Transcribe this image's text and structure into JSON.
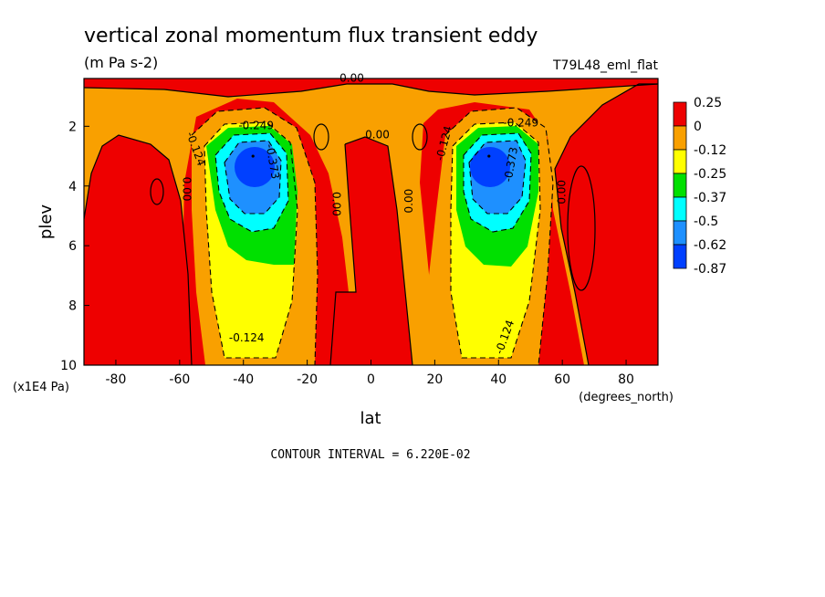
{
  "chart_data": {
    "type": "heatmap",
    "title": "vertical zonal momentum flux transient eddy",
    "units": "(m Pa s-2)",
    "dataset": "T79L48_eml_flat",
    "xlabel": "lat",
    "x_units": "(degrees_north)",
    "ylabel": "plev",
    "y_units": "(x1E4 Pa)",
    "xlim": [
      -90,
      90
    ],
    "ylim": [
      10,
      0.4
    ],
    "x_ticks": [
      "-80",
      "-60",
      "-40",
      "-20",
      "0",
      "20",
      "40",
      "60",
      "80"
    ],
    "y_ticks": [
      "2",
      "4",
      "6",
      "8",
      "10"
    ],
    "colorbar_labels": [
      "0.25",
      "0",
      "-0.12",
      "-0.25",
      "-0.37",
      "-0.5",
      "-0.62",
      "-0.87"
    ],
    "colorbar_colors": [
      "#ee0000",
      "#f9a000",
      "#ffff00",
      "#00e000",
      "#00ffff",
      "#1e90ff",
      "#0040ff"
    ],
    "contour_interval": "CONTOUR INTERVAL = 6.220E-02",
    "contour_labels": [
      {
        "text": "0.00",
        "lat": -6,
        "plev": 0.5,
        "rot": 0
      },
      {
        "text": "-0.249",
        "lat": -36,
        "plev": 2.1,
        "rot": 0
      },
      {
        "text": "-0.373",
        "lat": -32,
        "plev": 3.2,
        "rot": 80
      },
      {
        "text": "-0.124",
        "lat": -56,
        "plev": 2.8,
        "rot": 70
      },
      {
        "text": "0.00",
        "lat": -59,
        "plev": 4.1,
        "rot": 90
      },
      {
        "text": "0.00",
        "lat": 2,
        "plev": 2.4,
        "rot": 0
      },
      {
        "text": "0.00",
        "lat": -12,
        "plev": 4.6,
        "rot": 90
      },
      {
        "text": "0.00",
        "lat": 13,
        "plev": 4.5,
        "rot": 270
      },
      {
        "text": "-0.124",
        "lat": 24,
        "plev": 2.6,
        "rot": 285
      },
      {
        "text": "-0.249",
        "lat": 47,
        "plev": 2.0,
        "rot": 0
      },
      {
        "text": "-0.373",
        "lat": 45,
        "plev": 3.3,
        "rot": 280
      },
      {
        "text": "0.00",
        "lat": 61,
        "plev": 4.2,
        "rot": 270
      },
      {
        "text": "-0.124",
        "lat": -39,
        "plev": 9.2,
        "rot": 0
      },
      {
        "text": "-0.124",
        "lat": 43,
        "plev": 9.1,
        "rot": 290
      }
    ],
    "cells": [
      {
        "lat": -37,
        "plev": 3.0,
        "value": -0.87
      },
      {
        "lat": 37,
        "plev": 3.0,
        "value": -0.87
      }
    ]
  }
}
